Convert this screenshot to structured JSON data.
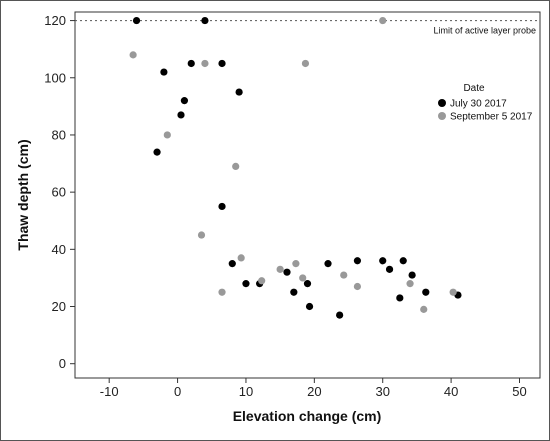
{
  "chart_data": {
    "type": "scatter",
    "xlabel": "Elevation change (cm)",
    "ylabel": "Thaw depth (cm)",
    "xlim": [
      -15,
      53
    ],
    "ylim": [
      -5,
      123
    ],
    "xticks": [
      -10,
      0,
      10,
      20,
      30,
      40,
      50
    ],
    "yticks": [
      0,
      20,
      40,
      60,
      80,
      100,
      120
    ],
    "legend": {
      "title": "Date",
      "placement": "top-right"
    },
    "reference_line": {
      "y": 120,
      "style": "dotted",
      "label": "Limit of active layer probe"
    },
    "series": [
      {
        "name": "July 30 2017",
        "color": "#000000",
        "points": [
          [
            -6,
            120
          ],
          [
            4,
            120
          ],
          [
            -2,
            102
          ],
          [
            2,
            105
          ],
          [
            6.5,
            105
          ],
          [
            9,
            95
          ],
          [
            1,
            92
          ],
          [
            0.5,
            87
          ],
          [
            -3,
            74
          ],
          [
            6.5,
            55
          ],
          [
            8,
            35
          ],
          [
            10,
            28
          ],
          [
            12,
            28
          ],
          [
            16,
            32
          ],
          [
            17,
            25
          ],
          [
            19,
            28
          ],
          [
            19.3,
            20
          ],
          [
            22,
            35
          ],
          [
            23.7,
            17
          ],
          [
            26.3,
            36
          ],
          [
            30,
            36
          ],
          [
            31,
            33
          ],
          [
            32.5,
            23
          ],
          [
            33,
            36
          ],
          [
            34.3,
            31
          ],
          [
            36.3,
            25
          ],
          [
            41,
            24
          ]
        ]
      },
      {
        "name": "September 5 2017",
        "color": "#999999",
        "points": [
          [
            -6.5,
            108
          ],
          [
            4,
            105
          ],
          [
            18.7,
            105
          ],
          [
            -1.5,
            80
          ],
          [
            8.5,
            69
          ],
          [
            3.5,
            45
          ],
          [
            9.3,
            37
          ],
          [
            6.5,
            25
          ],
          [
            12.3,
            29
          ],
          [
            15,
            33
          ],
          [
            17.3,
            35
          ],
          [
            18.3,
            30
          ],
          [
            24.3,
            31
          ],
          [
            26.3,
            27
          ],
          [
            30,
            120
          ],
          [
            34,
            28
          ],
          [
            36,
            19
          ],
          [
            40.3,
            25
          ]
        ]
      }
    ]
  }
}
